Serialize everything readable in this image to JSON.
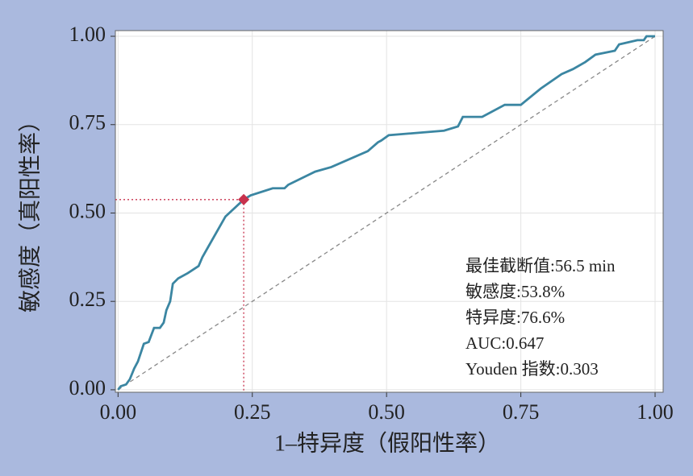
{
  "chart_data": {
    "type": "line",
    "xlabel": "1–特异度（假阳性率）",
    "ylabel": "敏感度（真阳性率）",
    "x": [
      0,
      0.005,
      0.015,
      0.022,
      0.03,
      0.037,
      0.048,
      0.057,
      0.067,
      0.078,
      0.085,
      0.09,
      0.097,
      0.102,
      0.112,
      0.13,
      0.15,
      0.157,
      0.2,
      0.234,
      0.247,
      0.288,
      0.31,
      0.317,
      0.367,
      0.397,
      0.465,
      0.484,
      0.49,
      0.504,
      0.607,
      0.633,
      0.642,
      0.678,
      0.72,
      0.75,
      0.787,
      0.826,
      0.847,
      0.87,
      0.889,
      0.925,
      0.933,
      0.967,
      0.979,
      0.984,
      1.0
    ],
    "series": [
      {
        "color": "#3b86a2",
        "values": [
          0,
          0.01,
          0.015,
          0.03,
          0.06,
          0.08,
          0.13,
          0.135,
          0.175,
          0.175,
          0.19,
          0.225,
          0.25,
          0.3,
          0.315,
          0.33,
          0.35,
          0.375,
          0.49,
          0.538,
          0.55,
          0.57,
          0.57,
          0.58,
          0.617,
          0.63,
          0.675,
          0.7,
          0.705,
          0.72,
          0.733,
          0.745,
          0.772,
          0.772,
          0.806,
          0.806,
          0.852,
          0.893,
          0.907,
          0.927,
          0.948,
          0.959,
          0.977,
          0.989,
          0.989,
          1.0,
          1.0
        ]
      }
    ],
    "reference": {
      "x": [
        0,
        1
      ],
      "y": [
        0,
        1
      ],
      "color": "#888888"
    },
    "marker": {
      "x": 0.234,
      "y": 0.538,
      "color": "#c8324d"
    },
    "xlim": [
      -0.005,
      1.015
    ],
    "ylim": [
      -0.007,
      1.016
    ],
    "xticks": [
      {
        "value": 0,
        "label": "0.00"
      },
      {
        "value": 0.25,
        "label": "0.25"
      },
      {
        "value": 0.5,
        "label": "0.50"
      },
      {
        "value": 0.75,
        "label": "0.75"
      },
      {
        "value": 1,
        "label": "1.00"
      }
    ],
    "yticks": [
      {
        "value": 0,
        "label": "0.00"
      },
      {
        "value": 0.25,
        "label": "0.25"
      },
      {
        "value": 0.5,
        "label": "0.50"
      },
      {
        "value": 0.75,
        "label": "0.75"
      },
      {
        "value": 1,
        "label": "1.00"
      }
    ],
    "grid": true,
    "annotations": [
      "最佳截断值:56.5 min",
      "敏感度:53.8%",
      "特异度:76.6%",
      "AUC:0.647",
      "Youden 指数:0.303"
    ]
  }
}
